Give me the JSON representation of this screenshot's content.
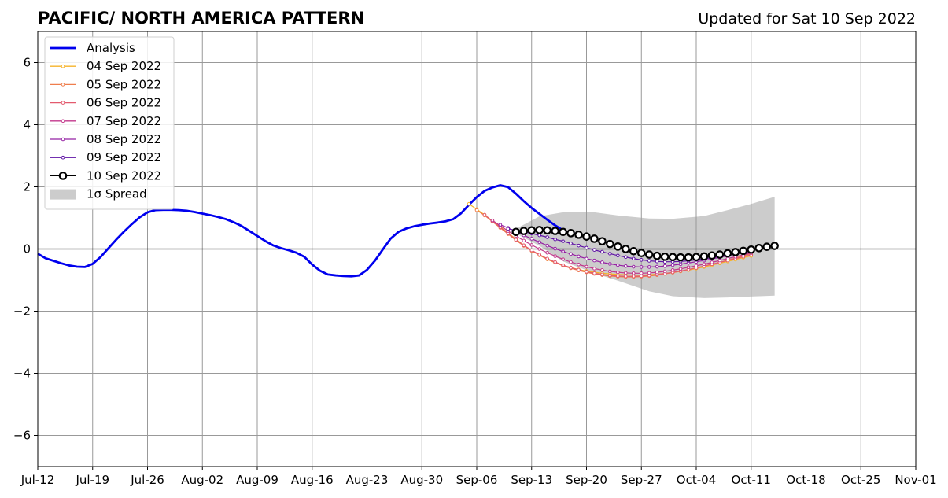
{
  "chart_data": {
    "type": "line",
    "title": "PACIFIC/ NORTH AMERICA PATTERN",
    "subtitle": "Updated for Sat 10 Sep 2022",
    "xlabel": "",
    "ylabel": "",
    "xlim": [
      "2022-07-12",
      "2022-11-01"
    ],
    "ylim": [
      -7,
      7
    ],
    "grid": true,
    "legend_position": "top-left",
    "x_ticks": [
      "Jul-12",
      "Jul-19",
      "Jul-26",
      "Aug-02",
      "Aug-09",
      "Aug-16",
      "Aug-23",
      "Aug-30",
      "Sep-06",
      "Sep-13",
      "Sep-20",
      "Sep-27",
      "Oct-04",
      "Oct-11",
      "Oct-18",
      "Oct-25",
      "Nov-01"
    ],
    "y_ticks": [
      "6",
      "4",
      "2",
      "0",
      "−2",
      "−4",
      "−6"
    ],
    "analysis": {
      "name": "Analysis",
      "color": "#0000ee",
      "start": "2022-07-12",
      "values": [
        -0.15,
        -0.3,
        -0.38,
        -0.46,
        -0.53,
        -0.57,
        -0.58,
        -0.48,
        -0.26,
        0.02,
        0.3,
        0.56,
        0.8,
        1.02,
        1.18,
        1.25,
        1.26,
        1.26,
        1.25,
        1.23,
        1.19,
        1.14,
        1.09,
        1.03,
        0.96,
        0.86,
        0.74,
        0.58,
        0.42,
        0.26,
        0.12,
        0.03,
        -0.04,
        -0.12,
        -0.25,
        -0.5,
        -0.7,
        -0.82,
        -0.85,
        -0.87,
        -0.88,
        -0.85,
        -0.67,
        -0.38,
        -0.02,
        0.33,
        0.55,
        0.66,
        0.73,
        0.78,
        0.82,
        0.85,
        0.89,
        0.96,
        1.15,
        1.42,
        1.67,
        1.87,
        1.98,
        2.05,
        1.99,
        1.78,
        1.54,
        1.32,
        1.13,
        0.94,
        0.76,
        0.6,
        0.5,
        0.48
      ]
    },
    "forecasts": [
      {
        "name": "04 Sep 2022",
        "color": "#f6b32a",
        "start": "2022-09-05",
        "values": [
          1.45,
          1.28,
          1.1,
          0.9,
          0.72,
          0.52,
          0.32,
          0.12,
          -0.05,
          -0.2,
          -0.33,
          -0.44,
          -0.53,
          -0.6,
          -0.66,
          -0.71,
          -0.75,
          -0.78,
          -0.8,
          -0.82,
          -0.83,
          -0.84,
          -0.84,
          -0.83,
          -0.81,
          -0.79,
          -0.76,
          -0.72,
          -0.68,
          -0.63,
          -0.58,
          -0.52,
          -0.46,
          -0.4,
          -0.34,
          -0.28,
          -0.22
        ]
      },
      {
        "name": "05 Sep 2022",
        "color": "#ef7e4d",
        "start": "2022-09-06",
        "values": [
          1.25,
          1.08,
          0.88,
          0.68,
          0.48,
          0.28,
          0.1,
          -0.06,
          -0.2,
          -0.33,
          -0.44,
          -0.54,
          -0.62,
          -0.69,
          -0.75,
          -0.8,
          -0.84,
          -0.87,
          -0.89,
          -0.9,
          -0.9,
          -0.89,
          -0.87,
          -0.84,
          -0.8,
          -0.76,
          -0.71,
          -0.66,
          -0.61,
          -0.55,
          -0.49,
          -0.43,
          -0.36,
          -0.29,
          -0.22,
          -0.15
        ]
      },
      {
        "name": "06 Sep 2022",
        "color": "#e35a6e",
        "start": "2022-09-07",
        "values": [
          1.1,
          0.9,
          0.7,
          0.5,
          0.3,
          0.12,
          -0.04,
          -0.18,
          -0.31,
          -0.42,
          -0.52,
          -0.6,
          -0.67,
          -0.73,
          -0.78,
          -0.82,
          -0.85,
          -0.87,
          -0.88,
          -0.88,
          -0.87,
          -0.85,
          -0.82,
          -0.79,
          -0.75,
          -0.71,
          -0.66,
          -0.61,
          -0.55,
          -0.49,
          -0.43,
          -0.37,
          -0.31,
          -0.25,
          -0.19
        ]
      },
      {
        "name": "07 Sep 2022",
        "color": "#c2378b",
        "start": "2022-09-08",
        "values": [
          0.92,
          0.75,
          0.58,
          0.42,
          0.27,
          0.13,
          0.0,
          -0.12,
          -0.23,
          -0.33,
          -0.42,
          -0.5,
          -0.57,
          -0.63,
          -0.68,
          -0.72,
          -0.75,
          -0.77,
          -0.78,
          -0.78,
          -0.77,
          -0.75,
          -0.72,
          -0.68,
          -0.64,
          -0.59,
          -0.54,
          -0.49,
          -0.43,
          -0.37,
          -0.31,
          -0.25,
          -0.19,
          -0.13
        ]
      },
      {
        "name": "08 Sep 2022",
        "color": "#9520a3",
        "start": "2022-09-09",
        "values": [
          0.78,
          0.68,
          0.56,
          0.44,
          0.33,
          0.22,
          0.11,
          0.01,
          -0.08,
          -0.16,
          -0.24,
          -0.31,
          -0.37,
          -0.43,
          -0.48,
          -0.52,
          -0.55,
          -0.57,
          -0.58,
          -0.58,
          -0.57,
          -0.55,
          -0.52,
          -0.49,
          -0.45,
          -0.41,
          -0.37,
          -0.32,
          -0.27,
          -0.22,
          -0.17,
          -0.12,
          -0.07
        ]
      },
      {
        "name": "09 Sep 2022",
        "color": "#5f12a5",
        "start": "2022-09-10",
        "values": [
          0.65,
          0.6,
          0.55,
          0.5,
          0.44,
          0.38,
          0.31,
          0.25,
          0.18,
          0.11,
          0.04,
          -0.03,
          -0.09,
          -0.15,
          -0.21,
          -0.26,
          -0.31,
          -0.35,
          -0.38,
          -0.4,
          -0.41,
          -0.41,
          -0.4,
          -0.38,
          -0.35,
          -0.32,
          -0.28,
          -0.24,
          -0.19,
          -0.14,
          -0.09,
          -0.04
        ]
      },
      {
        "name": "10 Sep 2022",
        "color": "#000000",
        "start": "2022-09-11",
        "values": [
          0.55,
          0.58,
          0.6,
          0.61,
          0.6,
          0.58,
          0.55,
          0.51,
          0.46,
          0.4,
          0.33,
          0.25,
          0.16,
          0.08,
          0.0,
          -0.07,
          -0.13,
          -0.18,
          -0.22,
          -0.25,
          -0.26,
          -0.27,
          -0.27,
          -0.26,
          -0.24,
          -0.21,
          -0.18,
          -0.14,
          -0.1,
          -0.06,
          -0.02,
          0.03,
          0.07,
          0.1
        ]
      }
    ],
    "spread": {
      "name": "1σ Spread",
      "color": "#cccccc",
      "x": [
        "2022-09-11",
        "2022-09-14",
        "2022-09-17",
        "2022-09-21",
        "2022-09-24",
        "2022-09-28",
        "2022-10-01",
        "2022-10-05",
        "2022-10-08",
        "2022-10-11",
        "2022-10-14"
      ],
      "upper": [
        0.65,
        1.05,
        1.18,
        1.18,
        1.08,
        0.98,
        0.97,
        1.06,
        1.25,
        1.45,
        1.68
      ],
      "lower": [
        0.5,
        0.1,
        -0.4,
        -0.78,
        -1.02,
        -1.36,
        -1.52,
        -1.58,
        -1.56,
        -1.53,
        -1.5
      ]
    }
  }
}
